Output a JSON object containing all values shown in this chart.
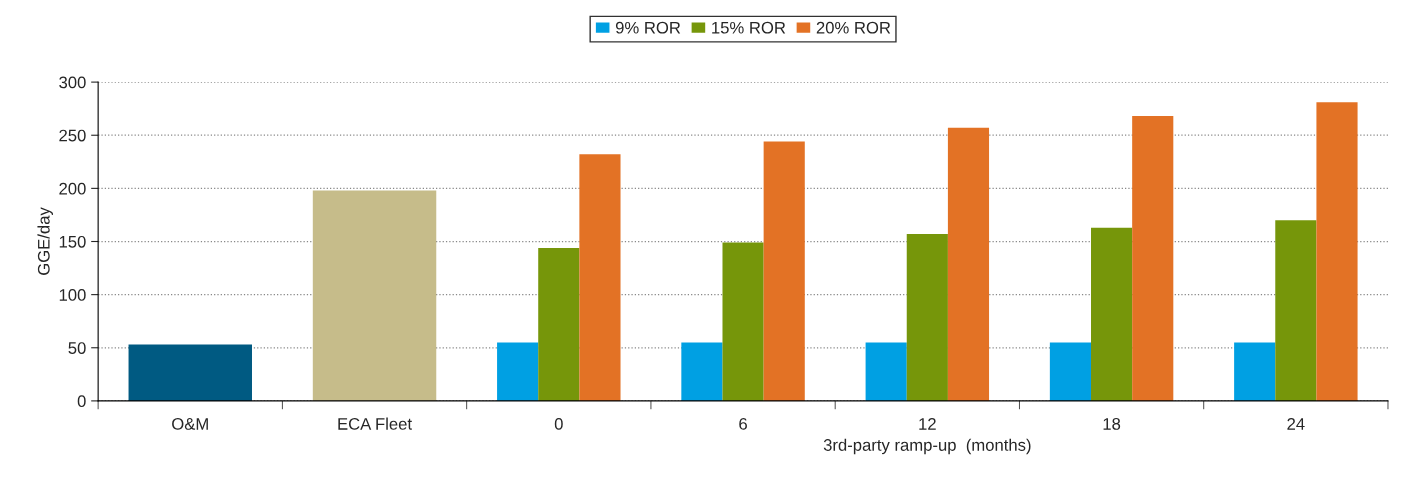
{
  "chart_data": {
    "type": "bar",
    "xlabel": "3rd-party ramp-up  (months)",
    "ylabel": "GGE/day",
    "categories": [
      "O&M",
      "ECA Fleet",
      "0",
      "6",
      "12",
      "18",
      "24"
    ],
    "series": [
      {
        "color": "#005a82",
        "values": [
          53,
          null,
          null,
          null,
          null,
          null,
          null
        ]
      },
      {
        "color": "#c6bc8a",
        "values": [
          null,
          198,
          null,
          null,
          null,
          null,
          null
        ]
      },
      {
        "name": "9% ROR",
        "color": "#00a0e3",
        "values": [
          null,
          null,
          55,
          55,
          55,
          55,
          55
        ]
      },
      {
        "name": "15% ROR",
        "color": "#76960a",
        "values": [
          null,
          null,
          144,
          149,
          157,
          163,
          170
        ]
      },
      {
        "name": "20% ROR",
        "color": "#e37225",
        "values": [
          null,
          null,
          232,
          244,
          257,
          268,
          281
        ]
      }
    ],
    "ylim": [
      0,
      300
    ],
    "yticks": [
      0,
      50,
      100,
      150,
      200,
      250,
      300
    ],
    "grid": "y",
    "legend": "top"
  }
}
